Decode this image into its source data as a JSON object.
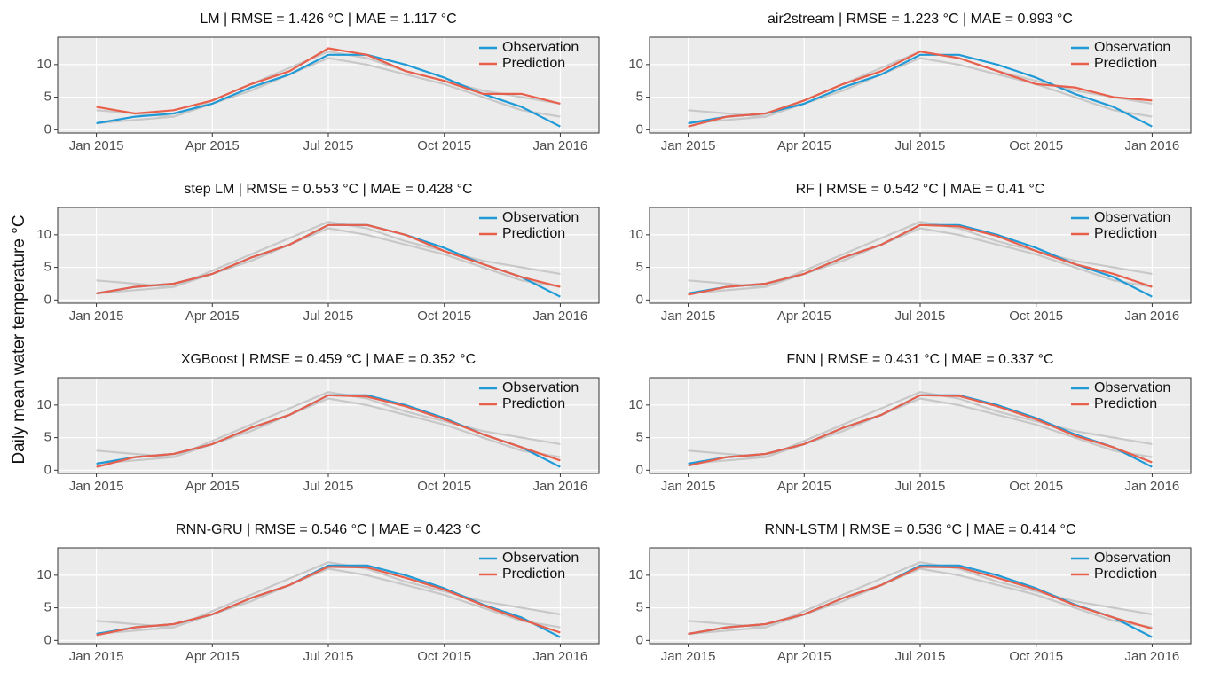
{
  "ylabel": "Daily mean  water  temperature °C",
  "chart_data": [
    {
      "type": "line",
      "title": "LM | RMSE = 1.426 °C | MAE = 1.117 °C",
      "x": [
        "2015-01",
        "2015-02",
        "2015-03",
        "2015-04",
        "2015-05",
        "2015-06",
        "2015-07",
        "2015-08",
        "2015-09",
        "2015-10",
        "2015-11",
        "2015-12",
        "2016-01"
      ],
      "xlim": [
        "2014-12",
        "2016-02"
      ],
      "xticks": [
        {
          "value": "2015-01",
          "label": "Jan 2015"
        },
        {
          "value": "2015-04",
          "label": "Apr 2015"
        },
        {
          "value": "2015-07",
          "label": "Jul 2015"
        },
        {
          "value": "2015-10",
          "label": "Oct 2015"
        },
        {
          "value": "2016-01",
          "label": "Jan 2016"
        }
      ],
      "ylim": [
        -0.5,
        14.2
      ],
      "yticks": [
        0,
        5,
        10
      ],
      "grid": true,
      "legend": "top-right",
      "series": [
        {
          "color": "#c8c8c8",
          "values": [
            3,
            2.5,
            2,
            4.5,
            7,
            9.5,
            12,
            11,
            9,
            7.5,
            6,
            5,
            4
          ]
        },
        {
          "color": "#c8c8c8",
          "values": [
            1,
            1.5,
            2,
            4,
            6,
            8.5,
            11,
            10,
            8.5,
            7,
            5,
            3,
            2
          ]
        },
        {
          "name": "Observation",
          "color": "#1f9ad6",
          "values": [
            1,
            2,
            2.5,
            4,
            6.5,
            8.5,
            11.5,
            11.5,
            10,
            8,
            5.5,
            3.5,
            0.5
          ]
        },
        {
          "name": "Prediction",
          "color": "#e8604c",
          "values": [
            3.5,
            2.5,
            3,
            4.5,
            7,
            9,
            12.5,
            11.5,
            9,
            7.5,
            5.5,
            5.5,
            4
          ]
        }
      ]
    },
    {
      "type": "line",
      "title": "air2stream | RMSE = 1.223 °C | MAE = 0.993 °C",
      "x": [
        "2015-01",
        "2015-02",
        "2015-03",
        "2015-04",
        "2015-05",
        "2015-06",
        "2015-07",
        "2015-08",
        "2015-09",
        "2015-10",
        "2015-11",
        "2015-12",
        "2016-01"
      ],
      "xlim": [
        "2014-12",
        "2016-02"
      ],
      "xticks": [
        {
          "value": "2015-01",
          "label": "Jan 2015"
        },
        {
          "value": "2015-04",
          "label": "Apr 2015"
        },
        {
          "value": "2015-07",
          "label": "Jul 2015"
        },
        {
          "value": "2015-10",
          "label": "Oct 2015"
        },
        {
          "value": "2016-01",
          "label": "Jan 2016"
        }
      ],
      "ylim": [
        -0.5,
        14.2
      ],
      "yticks": [
        0,
        5,
        10
      ],
      "grid": true,
      "legend": "top-right",
      "series": [
        {
          "color": "#c8c8c8",
          "values": [
            3,
            2.5,
            2,
            4.5,
            7,
            9.5,
            12,
            11,
            9,
            7.5,
            6,
            5,
            4
          ]
        },
        {
          "color": "#c8c8c8",
          "values": [
            1,
            1.5,
            2,
            4,
            6,
            8.5,
            11,
            10,
            8.5,
            7,
            5,
            3,
            2
          ]
        },
        {
          "name": "Observation",
          "color": "#1f9ad6",
          "values": [
            1,
            2,
            2.5,
            4,
            6.5,
            8.5,
            11.5,
            11.5,
            10,
            8,
            5.5,
            3.5,
            0.5
          ]
        },
        {
          "name": "Prediction",
          "color": "#e8604c",
          "values": [
            0.5,
            2,
            2.5,
            4.5,
            7,
            9,
            12,
            11,
            9,
            7,
            6.5,
            5,
            4.5
          ]
        }
      ]
    },
    {
      "type": "line",
      "title": "step LM | RMSE = 0.553 °C | MAE = 0.428 °C",
      "x": [
        "2015-01",
        "2015-02",
        "2015-03",
        "2015-04",
        "2015-05",
        "2015-06",
        "2015-07",
        "2015-08",
        "2015-09",
        "2015-10",
        "2015-11",
        "2015-12",
        "2016-01"
      ],
      "xlim": [
        "2014-12",
        "2016-02"
      ],
      "xticks": [
        {
          "value": "2015-01",
          "label": "Jan 2015"
        },
        {
          "value": "2015-04",
          "label": "Apr 2015"
        },
        {
          "value": "2015-07",
          "label": "Jul 2015"
        },
        {
          "value": "2015-10",
          "label": "Oct 2015"
        },
        {
          "value": "2016-01",
          "label": "Jan 2016"
        }
      ],
      "ylim": [
        -0.5,
        14.2
      ],
      "yticks": [
        0,
        5,
        10
      ],
      "grid": true,
      "legend": "top-right",
      "series": [
        {
          "color": "#c8c8c8",
          "values": [
            3,
            2.5,
            2,
            4.5,
            7,
            9.5,
            12,
            11,
            9,
            7.5,
            6,
            5,
            4
          ]
        },
        {
          "color": "#c8c8c8",
          "values": [
            1,
            1.5,
            2,
            4,
            6,
            8.5,
            11,
            10,
            8.5,
            7,
            5,
            3,
            2
          ]
        },
        {
          "name": "Observation",
          "color": "#1f9ad6",
          "values": [
            1,
            2,
            2.5,
            4,
            6.5,
            8.5,
            11.5,
            11.5,
            10,
            8,
            5.5,
            3.5,
            0.5
          ]
        },
        {
          "name": "Prediction",
          "color": "#e8604c",
          "values": [
            1,
            2,
            2.5,
            4,
            6.5,
            8.5,
            11.5,
            11.5,
            10,
            7.5,
            5.5,
            3.5,
            2
          ]
        }
      ]
    },
    {
      "type": "line",
      "title": "RF | RMSE = 0.542 °C | MAE = 0.41 °C",
      "x": [
        "2015-01",
        "2015-02",
        "2015-03",
        "2015-04",
        "2015-05",
        "2015-06",
        "2015-07",
        "2015-08",
        "2015-09",
        "2015-10",
        "2015-11",
        "2015-12",
        "2016-01"
      ],
      "xlim": [
        "2014-12",
        "2016-02"
      ],
      "xticks": [
        {
          "value": "2015-01",
          "label": "Jan 2015"
        },
        {
          "value": "2015-04",
          "label": "Apr 2015"
        },
        {
          "value": "2015-07",
          "label": "Jul 2015"
        },
        {
          "value": "2015-10",
          "label": "Oct 2015"
        },
        {
          "value": "2016-01",
          "label": "Jan 2016"
        }
      ],
      "ylim": [
        -0.5,
        14.2
      ],
      "yticks": [
        0,
        5,
        10
      ],
      "grid": true,
      "legend": "top-right",
      "series": [
        {
          "color": "#c8c8c8",
          "values": [
            3,
            2.5,
            2,
            4.5,
            7,
            9.5,
            12,
            11,
            9,
            7.5,
            6,
            5,
            4
          ]
        },
        {
          "color": "#c8c8c8",
          "values": [
            1,
            1.5,
            2,
            4,
            6,
            8.5,
            11,
            10,
            8.5,
            7,
            5,
            3,
            2
          ]
        },
        {
          "name": "Observation",
          "color": "#1f9ad6",
          "values": [
            1,
            2,
            2.5,
            4,
            6.5,
            8.5,
            11.5,
            11.5,
            10,
            8,
            5.5,
            3.5,
            0.5
          ]
        },
        {
          "name": "Prediction",
          "color": "#e8604c",
          "values": [
            0.8,
            2,
            2.5,
            4,
            6.5,
            8.5,
            11.5,
            11.3,
            9.8,
            7.5,
            5.5,
            4,
            2
          ]
        }
      ]
    },
    {
      "type": "line",
      "title": "XGBoost | RMSE = 0.459 °C | MAE = 0.352 °C",
      "x": [
        "2015-01",
        "2015-02",
        "2015-03",
        "2015-04",
        "2015-05",
        "2015-06",
        "2015-07",
        "2015-08",
        "2015-09",
        "2015-10",
        "2015-11",
        "2015-12",
        "2016-01"
      ],
      "xlim": [
        "2014-12",
        "2016-02"
      ],
      "xticks": [
        {
          "value": "2015-01",
          "label": "Jan 2015"
        },
        {
          "value": "2015-04",
          "label": "Apr 2015"
        },
        {
          "value": "2015-07",
          "label": "Jul 2015"
        },
        {
          "value": "2015-10",
          "label": "Oct 2015"
        },
        {
          "value": "2016-01",
          "label": "Jan 2016"
        }
      ],
      "ylim": [
        -0.5,
        14.2
      ],
      "yticks": [
        0,
        5,
        10
      ],
      "grid": true,
      "legend": "top-right",
      "series": [
        {
          "color": "#c8c8c8",
          "values": [
            3,
            2.5,
            2,
            4.5,
            7,
            9.5,
            12,
            11,
            9,
            7.5,
            6,
            5,
            4
          ]
        },
        {
          "color": "#c8c8c8",
          "values": [
            1,
            1.5,
            2,
            4,
            6,
            8.5,
            11,
            10,
            8.5,
            7,
            5,
            3,
            2
          ]
        },
        {
          "name": "Observation",
          "color": "#1f9ad6",
          "values": [
            1,
            2,
            2.5,
            4,
            6.5,
            8.5,
            11.5,
            11.5,
            10,
            8,
            5.5,
            3.5,
            0.5
          ]
        },
        {
          "name": "Prediction",
          "color": "#e8604c",
          "values": [
            0.5,
            2,
            2.5,
            4,
            6.5,
            8.5,
            11.5,
            11.3,
            9.8,
            7.8,
            5.5,
            3.5,
            1.5
          ]
        }
      ]
    },
    {
      "type": "line",
      "title": "FNN | RMSE = 0.431 °C | MAE = 0.337 °C",
      "x": [
        "2015-01",
        "2015-02",
        "2015-03",
        "2015-04",
        "2015-05",
        "2015-06",
        "2015-07",
        "2015-08",
        "2015-09",
        "2015-10",
        "2015-11",
        "2015-12",
        "2016-01"
      ],
      "xlim": [
        "2014-12",
        "2016-02"
      ],
      "xticks": [
        {
          "value": "2015-01",
          "label": "Jan 2015"
        },
        {
          "value": "2015-04",
          "label": "Apr 2015"
        },
        {
          "value": "2015-07",
          "label": "Jul 2015"
        },
        {
          "value": "2015-10",
          "label": "Oct 2015"
        },
        {
          "value": "2016-01",
          "label": "Jan 2016"
        }
      ],
      "ylim": [
        -0.5,
        14.2
      ],
      "yticks": [
        0,
        5,
        10
      ],
      "grid": true,
      "legend": "top-right",
      "series": [
        {
          "color": "#c8c8c8",
          "values": [
            3,
            2.5,
            2,
            4.5,
            7,
            9.5,
            12,
            11,
            9,
            7.5,
            6,
            5,
            4
          ]
        },
        {
          "color": "#c8c8c8",
          "values": [
            1,
            1.5,
            2,
            4,
            6,
            8.5,
            11,
            10,
            8.5,
            7,
            5,
            3,
            2
          ]
        },
        {
          "name": "Observation",
          "color": "#1f9ad6",
          "values": [
            1,
            2,
            2.5,
            4,
            6.5,
            8.5,
            11.5,
            11.5,
            10,
            8,
            5.5,
            3.5,
            0.5
          ]
        },
        {
          "name": "Prediction",
          "color": "#e8604c",
          "values": [
            0.7,
            2,
            2.5,
            4,
            6.5,
            8.5,
            11.5,
            11.4,
            9.8,
            7.8,
            5.3,
            3.5,
            1.2
          ]
        }
      ]
    },
    {
      "type": "line",
      "title": "RNN-GRU | RMSE = 0.546 °C | MAE = 0.423 °C",
      "x": [
        "2015-01",
        "2015-02",
        "2015-03",
        "2015-04",
        "2015-05",
        "2015-06",
        "2015-07",
        "2015-08",
        "2015-09",
        "2015-10",
        "2015-11",
        "2015-12",
        "2016-01"
      ],
      "xlim": [
        "2014-12",
        "2016-02"
      ],
      "xticks": [
        {
          "value": "2015-01",
          "label": "Jan 2015"
        },
        {
          "value": "2015-04",
          "label": "Apr 2015"
        },
        {
          "value": "2015-07",
          "label": "Jul 2015"
        },
        {
          "value": "2015-10",
          "label": "Oct 2015"
        },
        {
          "value": "2016-01",
          "label": "Jan 2016"
        }
      ],
      "ylim": [
        -0.5,
        14.2
      ],
      "yticks": [
        0,
        5,
        10
      ],
      "grid": true,
      "legend": "top-right",
      "series": [
        {
          "color": "#c8c8c8",
          "values": [
            3,
            2.5,
            2,
            4.5,
            7,
            9.5,
            12,
            11,
            9,
            7.5,
            6,
            5,
            4
          ]
        },
        {
          "color": "#c8c8c8",
          "values": [
            1,
            1.5,
            2,
            4,
            6,
            8.5,
            11,
            10,
            8.5,
            7,
            5,
            3,
            2
          ]
        },
        {
          "name": "Observation",
          "color": "#1f9ad6",
          "values": [
            1,
            2,
            2.5,
            4,
            6.5,
            8.5,
            11.5,
            11.5,
            10,
            8,
            5.5,
            3.5,
            0.5
          ]
        },
        {
          "name": "Prediction",
          "color": "#e8604c",
          "values": [
            0.8,
            2,
            2.5,
            4,
            6.5,
            8.5,
            11.3,
            11.2,
            9.6,
            7.8,
            5.4,
            3.2,
            1.2
          ]
        }
      ]
    },
    {
      "type": "line",
      "title": "RNN-LSTM | RMSE = 0.536 °C | MAE = 0.414 °C",
      "x": [
        "2015-01",
        "2015-02",
        "2015-03",
        "2015-04",
        "2015-05",
        "2015-06",
        "2015-07",
        "2015-08",
        "2015-09",
        "2015-10",
        "2015-11",
        "2015-12",
        "2016-01"
      ],
      "xlim": [
        "2014-12",
        "2016-02"
      ],
      "xticks": [
        {
          "value": "2015-01",
          "label": "Jan 2015"
        },
        {
          "value": "2015-04",
          "label": "Apr 2015"
        },
        {
          "value": "2015-07",
          "label": "Jul 2015"
        },
        {
          "value": "2015-10",
          "label": "Oct 2015"
        },
        {
          "value": "2016-01",
          "label": "Jan 2016"
        }
      ],
      "ylim": [
        -0.5,
        14.2
      ],
      "yticks": [
        0,
        5,
        10
      ],
      "grid": true,
      "legend": "top-right",
      "series": [
        {
          "color": "#c8c8c8",
          "values": [
            3,
            2.5,
            2,
            4.5,
            7,
            9.5,
            12,
            11,
            9,
            7.5,
            6,
            5,
            4
          ]
        },
        {
          "color": "#c8c8c8",
          "values": [
            1,
            1.5,
            2,
            4,
            6,
            8.5,
            11,
            10,
            8.5,
            7,
            5,
            3,
            2
          ]
        },
        {
          "name": "Observation",
          "color": "#1f9ad6",
          "values": [
            1,
            2,
            2.5,
            4,
            6.5,
            8.5,
            11.5,
            11.5,
            10,
            8,
            5.5,
            3.5,
            0.5
          ]
        },
        {
          "name": "Prediction",
          "color": "#e8604c",
          "values": [
            1,
            2,
            2.5,
            4,
            6.5,
            8.5,
            11.3,
            11.2,
            9.6,
            7.8,
            5.4,
            3.5,
            1.8
          ]
        }
      ]
    }
  ]
}
